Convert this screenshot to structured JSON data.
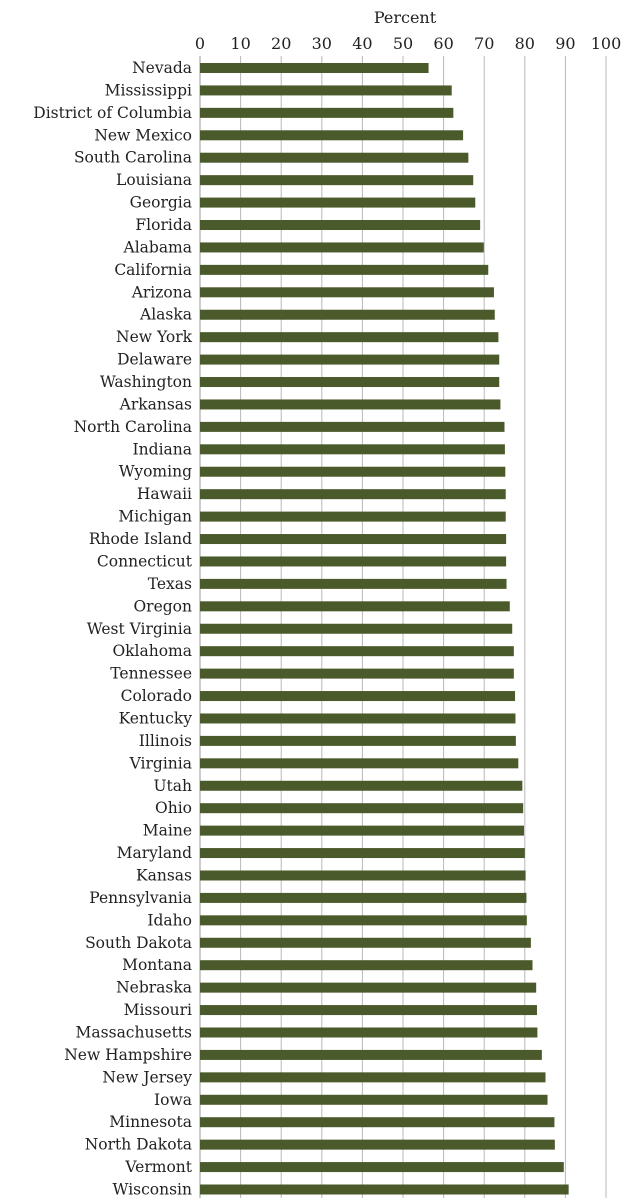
{
  "chart_data": {
    "type": "bar",
    "orientation": "horizontal",
    "xlabel": "Percent",
    "xlabel_position": "top",
    "xlim": [
      0,
      100
    ],
    "xticks": [
      0,
      10,
      20,
      30,
      40,
      50,
      60,
      70,
      80,
      90,
      100
    ],
    "grid": true,
    "bar_color": "#4b5a2a",
    "categories": [
      "Nevada",
      "Mississippi",
      "District of Columbia",
      "New Mexico",
      "South Carolina",
      "Louisiana",
      "Georgia",
      "Florida",
      "Alabama",
      "California",
      "Arizona",
      "Alaska",
      "New York",
      "Delaware",
      "Washington",
      "Arkansas",
      "North Carolina",
      "Indiana",
      "Wyoming",
      "Hawaii",
      "Michigan",
      "Rhode Island",
      "Connecticut",
      "Texas",
      "Oregon",
      "West Virginia",
      "Oklahoma",
      "Tennessee",
      "Colorado",
      "Kentucky",
      "Illinois",
      "Virginia",
      "Utah",
      "Ohio",
      "Maine",
      "Maryland",
      "Kansas",
      "Pennsylvania",
      "Idaho",
      "South Dakota",
      "Montana",
      "Nebraska",
      "Missouri",
      "Massachusetts",
      "New Hampshire",
      "New Jersey",
      "Iowa",
      "Minnesota",
      "North Dakota",
      "Vermont",
      "Wisconsin"
    ],
    "values": [
      56.3,
      62.0,
      62.4,
      64.8,
      66.1,
      67.3,
      67.8,
      69.0,
      69.9,
      71.0,
      72.4,
      72.6,
      73.5,
      73.7,
      73.7,
      74.0,
      75.0,
      75.1,
      75.2,
      75.3,
      75.3,
      75.4,
      75.4,
      75.5,
      76.3,
      76.9,
      77.3,
      77.3,
      77.6,
      77.7,
      77.8,
      78.4,
      79.4,
      79.6,
      79.8,
      80.0,
      80.2,
      80.4,
      80.5,
      81.5,
      81.9,
      82.8,
      83.0,
      83.1,
      84.2,
      85.1,
      85.6,
      87.3,
      87.4,
      89.6,
      90.8
    ]
  }
}
